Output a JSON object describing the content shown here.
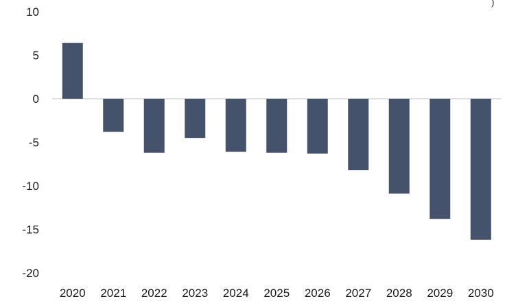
{
  "chart_data": {
    "type": "bar",
    "categories": [
      "2020",
      "2021",
      "2022",
      "2023",
      "2024",
      "2025",
      "2026",
      "2027",
      "2028",
      "2029",
      "2030"
    ],
    "values": [
      6.4,
      -3.8,
      -6.2,
      -4.5,
      -6.1,
      -6.2,
      -6.3,
      -8.2,
      -10.9,
      -13.8,
      -16.2
    ],
    "ylim": [
      -20,
      10
    ],
    "yticks": [
      "-20",
      "-15",
      "-10",
      "-5",
      "0",
      "5",
      "10"
    ],
    "grid": false,
    "colors": {
      "bar": "#45526b",
      "axis_line": "#bfbfbf"
    },
    "corner_mark": ")"
  }
}
